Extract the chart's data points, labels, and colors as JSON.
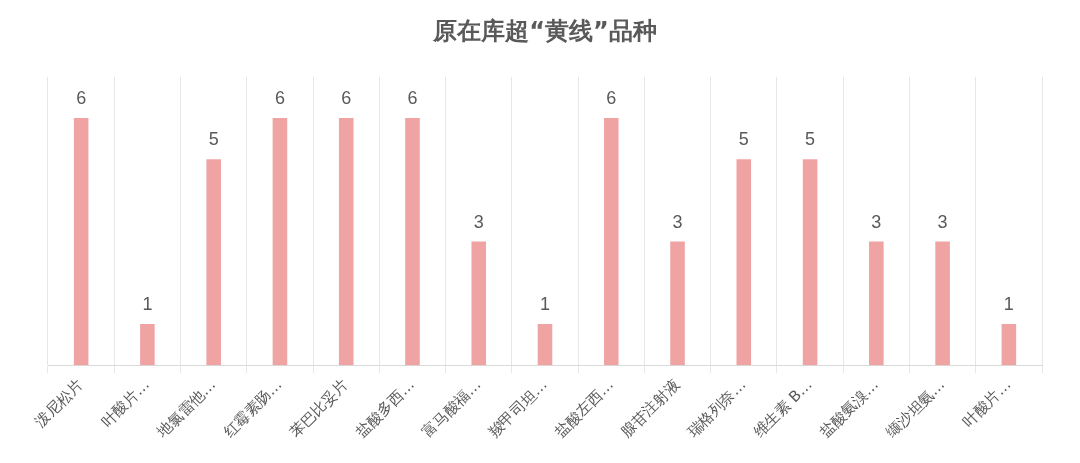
{
  "chart_data": {
    "type": "bar",
    "title": "原在库超“黄线”品种",
    "categories": [
      "泼尼松片",
      "叶酸片…",
      "地氯雷他…",
      "红霉素肠…",
      "苯巴比妥片",
      "盐酸多西…",
      "富马酸福…",
      "羧甲司坦…",
      "盐酸左西…",
      "腺苷注射液",
      "瑞格列奈…",
      "维生素 B…",
      "盐酸氨溴…",
      "缬沙坦氨…",
      "叶酸片…"
    ],
    "values": [
      6,
      1,
      5,
      6,
      6,
      6,
      3,
      1,
      6,
      3,
      5,
      5,
      3,
      3,
      1
    ],
    "color": "#f0a3a3",
    "ylim": [
      0,
      7
    ],
    "tick_labels": "x",
    "grid": "x",
    "data_labels": true,
    "legend": false
  }
}
